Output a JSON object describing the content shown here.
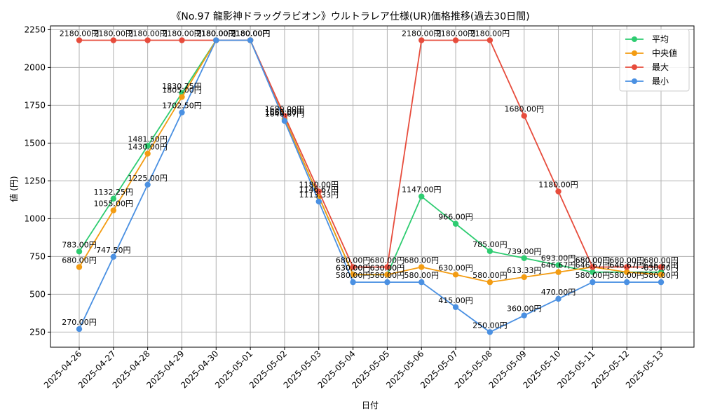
{
  "chart_data": {
    "type": "line",
    "title": "《No.97 龍影神ドラッグラビオン》ウルトラレア仕様(UR)価格推移(過去30日間)",
    "xlabel": "日付",
    "ylabel": "値 (円)",
    "ylim": [
      150,
      2275
    ],
    "yticks": [
      250,
      500,
      750,
      1000,
      1250,
      1500,
      1750,
      2000,
      2250
    ],
    "grid": true,
    "legend_position": "top-right",
    "value_suffix": "円",
    "categories": [
      "2025-04-26",
      "2025-04-27",
      "2025-04-28",
      "2025-04-29",
      "2025-04-30",
      "2025-05-01",
      "2025-05-02",
      "2025-05-03",
      "2025-05-04",
      "2025-05-05",
      "2025-05-06",
      "2025-05-07",
      "2025-05-08",
      "2025-05-09",
      "2025-05-10",
      "2025-05-11",
      "2025-05-12",
      "2025-05-13"
    ],
    "series": [
      {
        "name": "平均",
        "color": "#2ecc71",
        "values": [
          783.0,
          1132.25,
          1481.5,
          1830.75,
          2180.0,
          2180.0,
          1660.0,
          1146.67,
          630.0,
          630.0,
          1147.0,
          966.0,
          785.0,
          739.0,
          693.0,
          646.67,
          646.67,
          646.67
        ]
      },
      {
        "name": "中央値",
        "color": "#f39c12",
        "values": [
          680.0,
          1055.0,
          1430.0,
          1805.0,
          2180.0,
          2180.0,
          1660.0,
          1146.67,
          630.0,
          630.0,
          680.0,
          630.0,
          580.0,
          613.33,
          646.67,
          680.0,
          646.67,
          630.0
        ]
      },
      {
        "name": "最大",
        "color": "#e74c3c",
        "values": [
          2180.0,
          2180.0,
          2180.0,
          2180.0,
          2180.0,
          2180.0,
          1680.0,
          1180.0,
          680.0,
          680.0,
          2180.0,
          2180.0,
          2180.0,
          1680.0,
          1180.0,
          680.0,
          680.0,
          680.0
        ]
      },
      {
        "name": "最小",
        "color": "#4a90e2",
        "values": [
          270.0,
          747.5,
          1225.0,
          1702.5,
          2180.0,
          2180.0,
          1646.67,
          1113.33,
          580.0,
          580.0,
          580.0,
          415.0,
          250.0,
          360.0,
          470.0,
          580.0,
          580.0,
          580.0
        ]
      }
    ]
  }
}
